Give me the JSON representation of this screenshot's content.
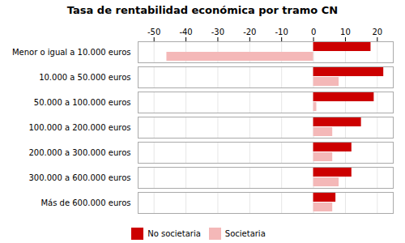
{
  "chart_data": {
    "type": "bar",
    "orientation": "horizontal",
    "title": "Tasa de rentabilidad económica por tramo CN",
    "categories": [
      "Menor o igual a 10.000 euros",
      "10.000 a 50.000 euros",
      "50.000 a 100.000 euros",
      "100.000 a 200.000 euros",
      "200.000 a 300.000 euros",
      "300.000 a 600.000 euros",
      "Más de 600.000 euros"
    ],
    "series": [
      {
        "name": "No societaria",
        "color": "#cc0000",
        "values": [
          18,
          22,
          19,
          15,
          12,
          12,
          7
        ]
      },
      {
        "name": "Societaria",
        "color": "#f4b8b8",
        "values": [
          -46,
          8,
          1,
          6,
          6,
          8,
          6
        ]
      }
    ],
    "xlim": [
      -55,
      25
    ],
    "xticks": [
      -50,
      -40,
      -30,
      -20,
      -10,
      0,
      10,
      20
    ],
    "grid": true,
    "legend": "bottom"
  }
}
